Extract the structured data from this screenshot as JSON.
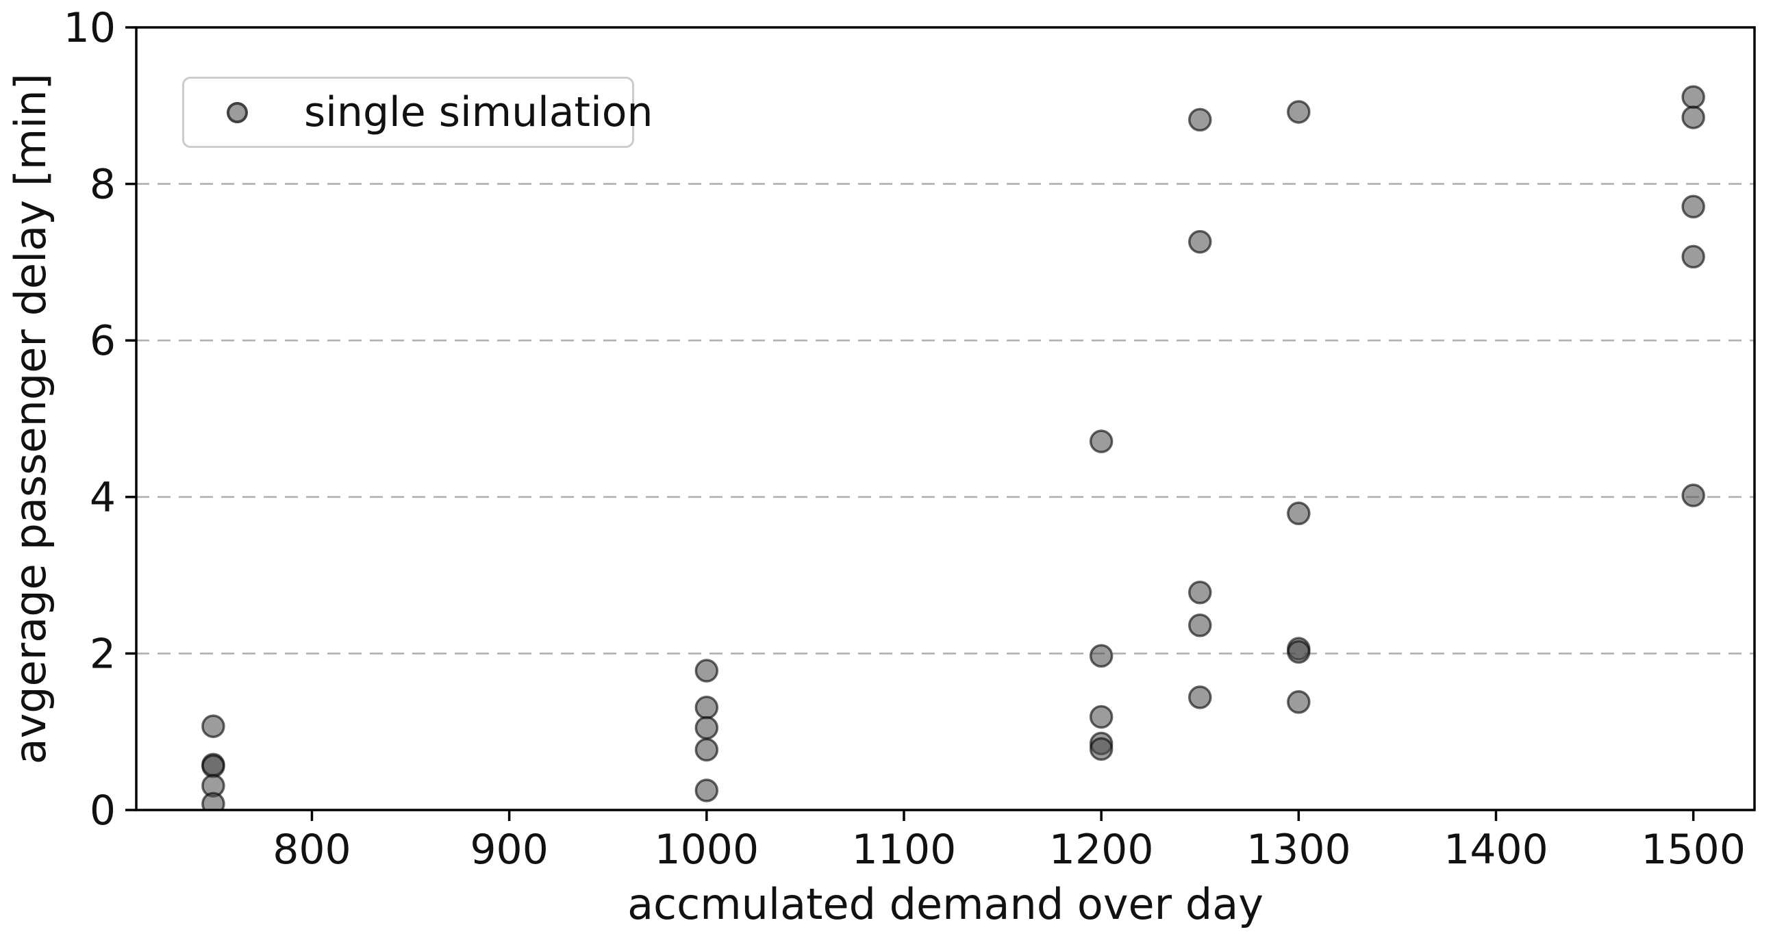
{
  "figure": {
    "background": "#ffffff",
    "axis_color": "#000000",
    "grid_color": "#b0b0b0",
    "tick_color": "#111111",
    "marker_fill": "#4b4b4b",
    "marker_fill_alpha": 0.55,
    "marker_edge": "#0a0a0a",
    "marker_edge_alpha": 0.62
  },
  "chart_data": {
    "type": "scatter",
    "title": "",
    "xlabel": "accmulated demand over day",
    "ylabel": "avgerage passenger delay [min]",
    "legend": {
      "label": "single simulation",
      "position": "upper-left"
    },
    "xlim": [
      711,
      1531
    ],
    "ylim": [
      0,
      10
    ],
    "x_ticks": [
      800,
      900,
      1000,
      1100,
      1200,
      1300,
      1400,
      1500
    ],
    "y_ticks": [
      0,
      2,
      4,
      6,
      8,
      10
    ],
    "grid": {
      "axis": "y",
      "style": "dashed",
      "lines_at": [
        2,
        4,
        6,
        8,
        10
      ]
    },
    "series": [
      {
        "name": "single simulation",
        "points": [
          [
            750,
            1.07
          ],
          [
            750,
            0.58
          ],
          [
            750,
            0.56
          ],
          [
            750,
            0.31
          ],
          [
            750,
            0.08
          ],
          [
            1000,
            1.78
          ],
          [
            1000,
            1.31
          ],
          [
            1000,
            1.05
          ],
          [
            1000,
            0.77
          ],
          [
            1000,
            0.25
          ],
          [
            1200,
            4.71
          ],
          [
            1200,
            1.97
          ],
          [
            1200,
            1.19
          ],
          [
            1200,
            0.85
          ],
          [
            1200,
            0.78
          ],
          [
            1250,
            8.82
          ],
          [
            1250,
            7.26
          ],
          [
            1250,
            2.78
          ],
          [
            1250,
            2.36
          ],
          [
            1250,
            1.44
          ],
          [
            1300,
            8.92
          ],
          [
            1300,
            3.79
          ],
          [
            1300,
            2.06
          ],
          [
            1300,
            2.02
          ],
          [
            1300,
            1.38
          ],
          [
            1500,
            9.11
          ],
          [
            1500,
            8.85
          ],
          [
            1500,
            7.71
          ],
          [
            1500,
            7.07
          ],
          [
            1500,
            4.02
          ]
        ]
      }
    ]
  }
}
